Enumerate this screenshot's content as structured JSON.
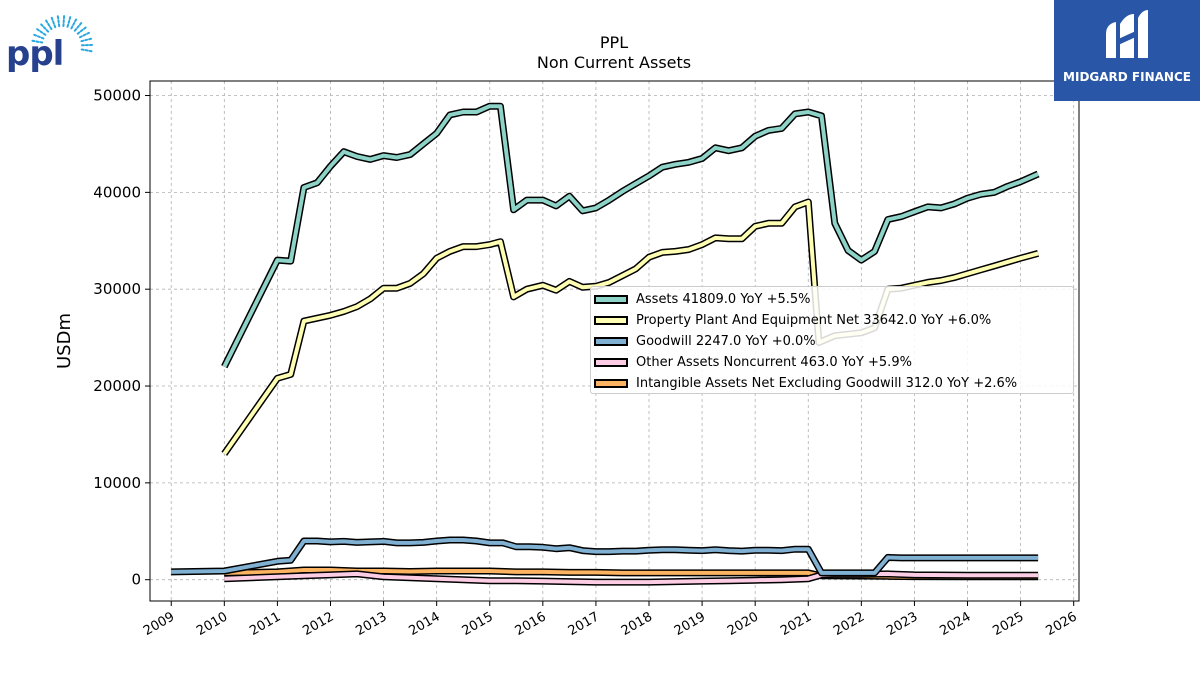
{
  "brand": {
    "logo_text": "ppl",
    "partner_name": "MIDGARD FINANCE"
  },
  "chart_data": {
    "type": "line",
    "title": "PPL",
    "subtitle": "Non Current  Assets",
    "ylabel": "USDm",
    "xlim": [
      2008.6,
      2026.1
    ],
    "ylim": [
      -2200,
      51500
    ],
    "x_ticks": [
      "2009",
      "2010",
      "2011",
      "2012",
      "2013",
      "2014",
      "2015",
      "2016",
      "2017",
      "2018",
      "2019",
      "2020",
      "2021",
      "2022",
      "2023",
      "2024",
      "2025",
      "2026"
    ],
    "y_ticks": [
      0,
      10000,
      20000,
      30000,
      40000,
      50000
    ],
    "y_tick_labels": [
      "0",
      "10000",
      "20000",
      "30000",
      "40000",
      "50000"
    ],
    "grid": true,
    "legend_position": "center-right",
    "series": [
      {
        "name": "Assets",
        "legend": "Assets  41809.0 YoY +5.5%",
        "color": "#8dd3c7",
        "points": [
          [
            2010.0,
            22000
          ],
          [
            2011.0,
            33000
          ],
          [
            2011.25,
            32900
          ],
          [
            2011.5,
            40500
          ],
          [
            2011.75,
            41000
          ],
          [
            2012.0,
            42700
          ],
          [
            2012.25,
            44200
          ],
          [
            2012.5,
            43700
          ],
          [
            2012.75,
            43400
          ],
          [
            2013.0,
            43800
          ],
          [
            2013.25,
            43600
          ],
          [
            2013.5,
            43900
          ],
          [
            2013.75,
            45000
          ],
          [
            2014.0,
            46100
          ],
          [
            2014.25,
            48000
          ],
          [
            2014.5,
            48300
          ],
          [
            2014.75,
            48300
          ],
          [
            2015.0,
            48900
          ],
          [
            2015.2,
            48900
          ],
          [
            2015.45,
            38200
          ],
          [
            2015.7,
            39200
          ],
          [
            2016.0,
            39200
          ],
          [
            2016.25,
            38600
          ],
          [
            2016.5,
            39600
          ],
          [
            2016.75,
            38100
          ],
          [
            2017.0,
            38400
          ],
          [
            2017.25,
            39200
          ],
          [
            2017.5,
            40100
          ],
          [
            2017.75,
            40900
          ],
          [
            2018.0,
            41700
          ],
          [
            2018.25,
            42600
          ],
          [
            2018.5,
            42900
          ],
          [
            2018.75,
            43100
          ],
          [
            2019.0,
            43500
          ],
          [
            2019.25,
            44600
          ],
          [
            2019.5,
            44300
          ],
          [
            2019.75,
            44600
          ],
          [
            2020.0,
            45800
          ],
          [
            2020.25,
            46400
          ],
          [
            2020.5,
            46600
          ],
          [
            2020.75,
            48100
          ],
          [
            2021.0,
            48300
          ],
          [
            2021.25,
            47900
          ],
          [
            2021.5,
            36800
          ],
          [
            2021.75,
            34000
          ],
          [
            2022.0,
            33000
          ],
          [
            2022.25,
            33900
          ],
          [
            2022.5,
            37200
          ],
          [
            2022.75,
            37500
          ],
          [
            2023.0,
            38000
          ],
          [
            2023.25,
            38500
          ],
          [
            2023.5,
            38400
          ],
          [
            2023.75,
            38800
          ],
          [
            2024.0,
            39400
          ],
          [
            2024.25,
            39800
          ],
          [
            2024.5,
            40000
          ],
          [
            2024.75,
            40600
          ],
          [
            2025.0,
            41100
          ],
          [
            2025.33,
            41900
          ]
        ]
      },
      {
        "name": "Property Plant And Equipment Net",
        "legend": "Property Plant And Equipment Net  33642.0 YoY +6.0%",
        "color": "#ffffb3",
        "points": [
          [
            2010.0,
            13000
          ],
          [
            2011.0,
            20800
          ],
          [
            2011.25,
            21200
          ],
          [
            2011.5,
            26700
          ],
          [
            2011.75,
            27000
          ],
          [
            2012.0,
            27300
          ],
          [
            2012.25,
            27700
          ],
          [
            2012.5,
            28200
          ],
          [
            2012.75,
            29000
          ],
          [
            2013.0,
            30100
          ],
          [
            2013.25,
            30100
          ],
          [
            2013.5,
            30600
          ],
          [
            2013.75,
            31600
          ],
          [
            2014.0,
            33200
          ],
          [
            2014.25,
            33900
          ],
          [
            2014.5,
            34400
          ],
          [
            2014.75,
            34400
          ],
          [
            2015.0,
            34600
          ],
          [
            2015.2,
            34900
          ],
          [
            2015.45,
            29200
          ],
          [
            2015.7,
            30000
          ],
          [
            2016.0,
            30400
          ],
          [
            2016.25,
            29900
          ],
          [
            2016.5,
            30800
          ],
          [
            2016.75,
            30200
          ],
          [
            2017.0,
            30300
          ],
          [
            2017.25,
            30700
          ],
          [
            2017.5,
            31400
          ],
          [
            2017.75,
            32100
          ],
          [
            2018.0,
            33300
          ],
          [
            2018.25,
            33800
          ],
          [
            2018.5,
            33900
          ],
          [
            2018.75,
            34100
          ],
          [
            2019.0,
            34600
          ],
          [
            2019.25,
            35300
          ],
          [
            2019.5,
            35200
          ],
          [
            2019.75,
            35200
          ],
          [
            2020.0,
            36500
          ],
          [
            2020.25,
            36800
          ],
          [
            2020.5,
            36800
          ],
          [
            2020.75,
            38500
          ],
          [
            2021.0,
            39000
          ],
          [
            2021.2,
            24500
          ],
          [
            2021.5,
            25200
          ],
          [
            2022.0,
            25500
          ],
          [
            2022.25,
            26000
          ],
          [
            2022.5,
            30000
          ],
          [
            2022.75,
            30100
          ],
          [
            2023.0,
            30400
          ],
          [
            2023.25,
            30700
          ],
          [
            2023.5,
            30900
          ],
          [
            2023.75,
            31200
          ],
          [
            2024.0,
            31600
          ],
          [
            2024.25,
            32000
          ],
          [
            2024.5,
            32400
          ],
          [
            2024.75,
            32800
          ],
          [
            2025.0,
            33200
          ],
          [
            2025.33,
            33700
          ]
        ]
      },
      {
        "name": "Goodwill",
        "legend": "Goodwill  2247.0 YoY +0.0%",
        "color": "#80b1d3",
        "points": [
          [
            2009.0,
            800
          ],
          [
            2010.0,
            900
          ],
          [
            2011.0,
            1900
          ],
          [
            2011.25,
            2000
          ],
          [
            2011.5,
            4000
          ],
          [
            2011.75,
            4000
          ],
          [
            2012.0,
            3900
          ],
          [
            2012.25,
            3950
          ],
          [
            2012.5,
            3850
          ],
          [
            2012.75,
            3900
          ],
          [
            2013.0,
            3950
          ],
          [
            2013.25,
            3800
          ],
          [
            2013.5,
            3800
          ],
          [
            2013.75,
            3850
          ],
          [
            2014.0,
            4000
          ],
          [
            2014.25,
            4100
          ],
          [
            2014.5,
            4100
          ],
          [
            2014.75,
            4000
          ],
          [
            2015.0,
            3800
          ],
          [
            2015.25,
            3800
          ],
          [
            2015.5,
            3400
          ],
          [
            2015.75,
            3400
          ],
          [
            2016.0,
            3350
          ],
          [
            2016.25,
            3200
          ],
          [
            2016.5,
            3300
          ],
          [
            2016.75,
            3000
          ],
          [
            2017.0,
            2900
          ],
          [
            2017.25,
            2900
          ],
          [
            2017.5,
            2950
          ],
          [
            2017.75,
            2950
          ],
          [
            2018.0,
            3050
          ],
          [
            2018.25,
            3100
          ],
          [
            2018.5,
            3100
          ],
          [
            2018.75,
            3050
          ],
          [
            2019.0,
            3000
          ],
          [
            2019.25,
            3100
          ],
          [
            2019.5,
            3000
          ],
          [
            2019.75,
            2950
          ],
          [
            2020.0,
            3050
          ],
          [
            2020.25,
            3050
          ],
          [
            2020.5,
            3000
          ],
          [
            2020.75,
            3150
          ],
          [
            2021.0,
            3150
          ],
          [
            2021.25,
            700
          ],
          [
            2021.5,
            700
          ],
          [
            2022.0,
            700
          ],
          [
            2022.25,
            700
          ],
          [
            2022.5,
            2300
          ],
          [
            2022.75,
            2250
          ],
          [
            2023.0,
            2250
          ],
          [
            2024.0,
            2250
          ],
          [
            2025.33,
            2247
          ]
        ]
      },
      {
        "name": "Other Assets Noncurrent",
        "legend": "Other Assets Noncurrent  463.0 YoY +5.9%",
        "color": "#fccde5",
        "points": [
          [
            2010.0,
            100
          ],
          [
            2011.0,
            300
          ],
          [
            2011.5,
            400
          ],
          [
            2012.0,
            500
          ],
          [
            2012.5,
            600
          ],
          [
            2013.0,
            300
          ],
          [
            2013.5,
            200
          ],
          [
            2014.0,
            100
          ],
          [
            2014.5,
            0
          ],
          [
            2015.0,
            -100
          ],
          [
            2015.5,
            -100
          ],
          [
            2016.0,
            -150
          ],
          [
            2016.5,
            -200
          ],
          [
            2017.0,
            -250
          ],
          [
            2017.5,
            -250
          ],
          [
            2018.0,
            -250
          ],
          [
            2018.5,
            -200
          ],
          [
            2019.0,
            -150
          ],
          [
            2019.5,
            -100
          ],
          [
            2020.0,
            -50
          ],
          [
            2020.5,
            0
          ],
          [
            2021.0,
            100
          ],
          [
            2021.25,
            500
          ],
          [
            2021.5,
            550
          ],
          [
            2022.0,
            550
          ],
          [
            2022.5,
            600
          ],
          [
            2023.0,
            500
          ],
          [
            2024.0,
            450
          ],
          [
            2025.33,
            463
          ]
        ]
      },
      {
        "name": "Intangible Assets Net Excluding Goodwill",
        "legend": "Intangible Assets Net Excluding Goodwill  312.0 YoY +2.6%",
        "color": "#fdb462",
        "points": [
          [
            2010.0,
            700
          ],
          [
            2011.0,
            800
          ],
          [
            2011.5,
            1000
          ],
          [
            2012.0,
            1000
          ],
          [
            2012.5,
            900
          ],
          [
            2013.0,
            900
          ],
          [
            2013.5,
            850
          ],
          [
            2014.0,
            900
          ],
          [
            2014.5,
            900
          ],
          [
            2015.0,
            900
          ],
          [
            2015.5,
            800
          ],
          [
            2016.0,
            800
          ],
          [
            2016.5,
            750
          ],
          [
            2017.0,
            750
          ],
          [
            2017.5,
            700
          ],
          [
            2018.0,
            700
          ],
          [
            2018.5,
            700
          ],
          [
            2019.0,
            700
          ],
          [
            2019.5,
            700
          ],
          [
            2020.0,
            700
          ],
          [
            2020.5,
            700
          ],
          [
            2021.0,
            700
          ],
          [
            2021.25,
            400
          ],
          [
            2022.0,
            380
          ],
          [
            2022.5,
            350
          ],
          [
            2023.0,
            320
          ],
          [
            2024.0,
            310
          ],
          [
            2025.33,
            312
          ]
        ]
      }
    ]
  }
}
